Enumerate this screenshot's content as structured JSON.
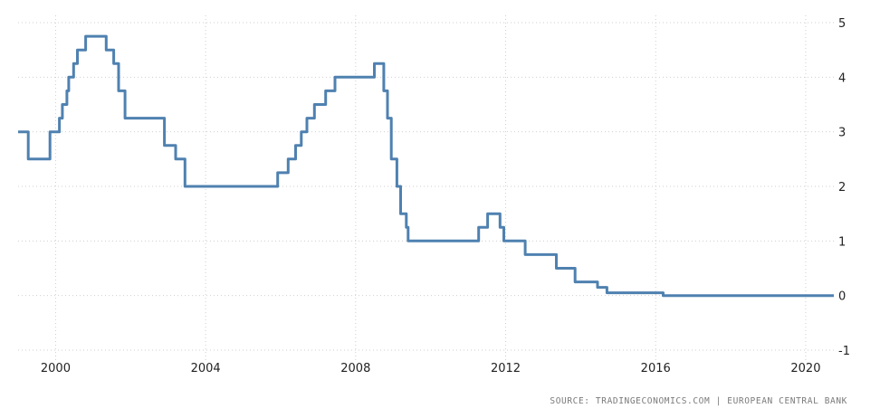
{
  "chart_data": {
    "type": "line",
    "title": "",
    "xlabel": "",
    "ylabel": "",
    "xlim": [
      1999.0,
      2020.75
    ],
    "ylim": [
      -1,
      5
    ],
    "x_ticks": [
      2000,
      2004,
      2008,
      2012,
      2016,
      2020
    ],
    "y_ticks": [
      5,
      4,
      3,
      2,
      1,
      0,
      -1
    ],
    "grid": true,
    "legend": "none",
    "series": [
      {
        "color": "#4f81b0",
        "step": true,
        "points": [
          [
            1999.0,
            3.0
          ],
          [
            1999.27,
            2.5
          ],
          [
            1999.85,
            3.0
          ],
          [
            2000.1,
            3.25
          ],
          [
            2000.18,
            3.5
          ],
          [
            2000.3,
            3.75
          ],
          [
            2000.35,
            4.0
          ],
          [
            2000.48,
            4.25
          ],
          [
            2000.58,
            4.5
          ],
          [
            2000.8,
            4.75
          ],
          [
            2001.35,
            4.5
          ],
          [
            2001.55,
            4.25
          ],
          [
            2001.68,
            3.75
          ],
          [
            2001.85,
            3.25
          ],
          [
            2002.9,
            2.75
          ],
          [
            2003.2,
            2.5
          ],
          [
            2003.45,
            2.0
          ],
          [
            2005.92,
            2.25
          ],
          [
            2006.2,
            2.5
          ],
          [
            2006.4,
            2.75
          ],
          [
            2006.55,
            3.0
          ],
          [
            2006.7,
            3.25
          ],
          [
            2006.9,
            3.5
          ],
          [
            2007.2,
            3.75
          ],
          [
            2007.45,
            4.0
          ],
          [
            2008.5,
            4.25
          ],
          [
            2008.75,
            3.75
          ],
          [
            2008.85,
            3.25
          ],
          [
            2008.95,
            2.5
          ],
          [
            2009.1,
            2.0
          ],
          [
            2009.2,
            1.5
          ],
          [
            2009.35,
            1.25
          ],
          [
            2009.4,
            1.0
          ],
          [
            2011.28,
            1.25
          ],
          [
            2011.52,
            1.5
          ],
          [
            2011.85,
            1.25
          ],
          [
            2011.95,
            1.0
          ],
          [
            2012.52,
            0.75
          ],
          [
            2013.35,
            0.5
          ],
          [
            2013.85,
            0.25
          ],
          [
            2014.45,
            0.15
          ],
          [
            2014.7,
            0.05
          ],
          [
            2016.2,
            0.0
          ],
          [
            2020.75,
            0.0
          ]
        ]
      }
    ],
    "source": "SOURCE: TRADINGECONOMICS.COM | EUROPEAN CENTRAL BANK"
  }
}
